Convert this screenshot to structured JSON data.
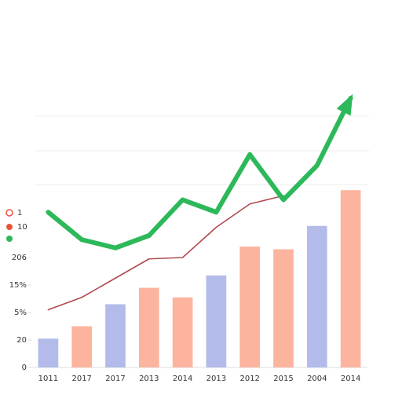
{
  "chart_data": {
    "type": "bar",
    "categories": [
      "1011",
      "2017",
      "2017",
      "2013",
      "2014",
      "2013",
      "2012",
      "2015",
      "2004",
      "2014"
    ],
    "values": [
      21,
      30,
      46,
      58,
      51,
      67,
      88,
      86,
      103,
      129
    ],
    "colors": [
      "#aab4e8",
      "#fcac95",
      "#aab4e8",
      "#fcac95",
      "#fcac95",
      "#aab4e8",
      "#fcac95",
      "#fcac95",
      "#aab4e8",
      "#fcac95"
    ],
    "ylim": [
      0,
      200
    ],
    "yticks": [
      0,
      20,
      {
        "value": 40,
        "label": "5%"
      },
      {
        "value": 60,
        "label": "15%"
      },
      {
        "value": 80,
        "label": "206"
      }
    ],
    "series": [
      {
        "name": "1",
        "color": "#b04a50",
        "values": [
          42,
          51,
          65,
          79,
          80,
          102,
          119,
          125,
          null,
          null
        ]
      },
      {
        "name": "10",
        "color": "#2db85a",
        "values": [
          113,
          93,
          87,
          96,
          122,
          113,
          155,
          122,
          147,
          196
        ]
      }
    ]
  }
}
